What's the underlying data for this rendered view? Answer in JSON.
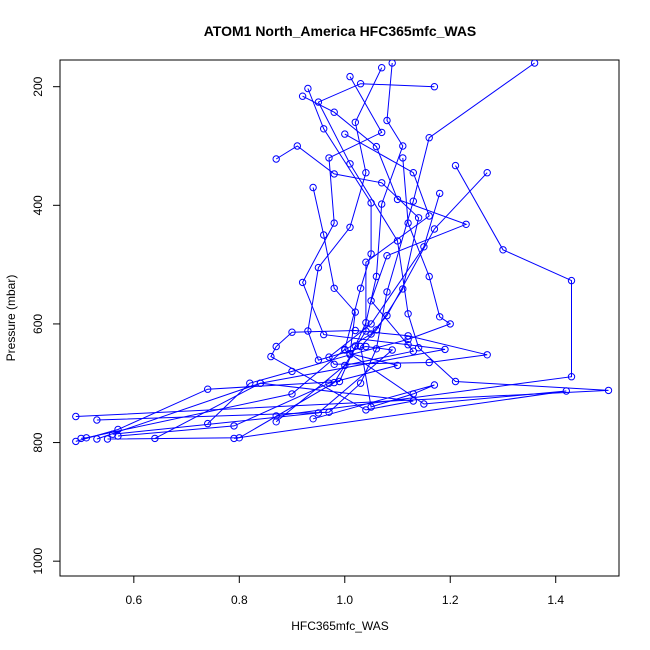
{
  "chart_data": {
    "type": "line",
    "title": "ATOM1 North_America HFC365mfc_WAS",
    "xlabel": "HFC365mfc_WAS",
    "ylabel": "Pressure (mbar)",
    "xlim": [
      0.46,
      1.52
    ],
    "ylim": [
      1025,
      155
    ],
    "y_reversed": true,
    "x_ticks": [
      0.6,
      0.8,
      1.0,
      1.2,
      1.4
    ],
    "y_ticks": [
      200,
      400,
      600,
      800,
      1000
    ],
    "grid": false,
    "legend": "none",
    "marker": "open-circle",
    "color": "#0000ff",
    "series": [
      {
        "points": [
          [
            1.09,
            160
          ],
          [
            1.08,
            257
          ],
          [
            1.11,
            300
          ],
          [
            1.07,
            398
          ],
          [
            1.06,
            520
          ],
          [
            1.04,
            598
          ],
          [
            1.02,
            637
          ],
          [
            0.99,
            697
          ],
          [
            0.74,
            710
          ],
          [
            0.57,
            778
          ],
          [
            0.49,
            798
          ]
        ]
      },
      {
        "points": [
          [
            1.17,
            200
          ],
          [
            1.03,
            195
          ],
          [
            0.95,
            226
          ],
          [
            1.01,
            330
          ],
          [
            1.1,
            460
          ],
          [
            1.12,
            583
          ],
          [
            1.14,
            640
          ],
          [
            1.21,
            697
          ],
          [
            1.5,
            712
          ],
          [
            0.49,
            756
          ]
        ]
      },
      {
        "points": [
          [
            0.93,
            203
          ],
          [
            0.96,
            271
          ],
          [
            1.05,
            396
          ],
          [
            1.05,
            482
          ],
          [
            1.03,
            540
          ],
          [
            1.0,
            643
          ],
          [
            0.9,
            718
          ],
          [
            0.51,
            792
          ],
          [
            0.5,
            793
          ]
        ]
      },
      {
        "points": [
          [
            1.36,
            160
          ],
          [
            1.16,
            286
          ],
          [
            1.13,
            393
          ],
          [
            1.08,
            546
          ],
          [
            1.06,
            642
          ],
          [
            1.03,
            700
          ],
          [
            0.97,
            749
          ],
          [
            0.53,
            762
          ]
        ]
      },
      {
        "points": [
          [
            1.07,
            168
          ],
          [
            1.02,
            260
          ],
          [
            1.04,
            345
          ],
          [
            1.01,
            437
          ],
          [
            0.95,
            505
          ],
          [
            0.93,
            612
          ],
          [
            0.95,
            661
          ],
          [
            1.04,
            638
          ],
          [
            1.09,
            644
          ],
          [
            0.95,
            750
          ],
          [
            0.56,
            786
          ]
        ]
      },
      {
        "points": [
          [
            1.01,
            183
          ],
          [
            1.07,
            277
          ],
          [
            0.97,
            320
          ],
          [
            0.98,
            430
          ],
          [
            0.92,
            530
          ],
          [
            0.96,
            618
          ],
          [
            1.12,
            635
          ],
          [
            1.19,
            643
          ],
          [
            0.84,
            700
          ],
          [
            0.53,
            794
          ]
        ]
      },
      {
        "points": [
          [
            0.92,
            216
          ],
          [
            0.98,
            243
          ],
          [
            1.06,
            301
          ],
          [
            1.1,
            390
          ],
          [
            1.23,
            432
          ],
          [
            1.08,
            485
          ],
          [
            1.05,
            561
          ],
          [
            1.13,
            646
          ],
          [
            1.0,
            670
          ],
          [
            0.87,
            765
          ]
        ]
      },
      {
        "points": [
          [
            1.0,
            280
          ],
          [
            1.13,
            345
          ],
          [
            1.16,
            418
          ],
          [
            1.04,
            496
          ],
          [
            1.04,
            612
          ],
          [
            0.98,
            699
          ],
          [
            0.8,
            792
          ],
          [
            0.55,
            794
          ]
        ]
      },
      {
        "points": [
          [
            0.87,
            322
          ],
          [
            0.91,
            300
          ],
          [
            0.98,
            347
          ],
          [
            1.07,
            362
          ],
          [
            1.14,
            421
          ],
          [
            1.11,
            541
          ],
          [
            1.06,
            610
          ],
          [
            1.03,
            638
          ],
          [
            1.05,
            740
          ],
          [
            1.13,
            718
          ],
          [
            1.17,
            703
          ],
          [
            0.94,
            760
          ]
        ]
      },
      {
        "points": [
          [
            1.21,
            333
          ],
          [
            1.3,
            475
          ],
          [
            1.43,
            527
          ],
          [
            1.43,
            689
          ],
          [
            0.87,
            755
          ]
        ]
      },
      {
        "points": [
          [
            1.27,
            345
          ],
          [
            1.17,
            440
          ],
          [
            1.08,
            586
          ],
          [
            1.05,
            617
          ],
          [
            1.0,
            644
          ],
          [
            1.15,
            735
          ],
          [
            1.42,
            713
          ],
          [
            0.79,
            793
          ]
        ]
      },
      {
        "points": [
          [
            1.18,
            380
          ],
          [
            1.15,
            470
          ],
          [
            1.05,
            600
          ],
          [
            0.97,
            656
          ],
          [
            0.98,
            668
          ],
          [
            1.16,
            665
          ],
          [
            1.27,
            652
          ],
          [
            1.12,
            620
          ],
          [
            1.02,
            611
          ],
          [
            0.9,
            614
          ],
          [
            0.87,
            638
          ],
          [
            0.86,
            655
          ],
          [
            1.04,
            745
          ],
          [
            1.13,
            730
          ],
          [
            0.84,
            700
          ],
          [
            0.64,
            793
          ]
        ]
      },
      {
        "points": [
          [
            0.94,
            370
          ],
          [
            0.96,
            450
          ],
          [
            0.98,
            540
          ],
          [
            1.02,
            580
          ],
          [
            1.01,
            650
          ],
          [
            1.1,
            670
          ],
          [
            0.97,
            700
          ],
          [
            0.79,
            772
          ],
          [
            0.57,
            789
          ]
        ]
      },
      {
        "points": [
          [
            1.11,
            320
          ],
          [
            1.12,
            430
          ],
          [
            1.16,
            520
          ],
          [
            1.18,
            588
          ],
          [
            1.2,
            600
          ],
          [
            1.12,
            626
          ],
          [
            1.01,
            652
          ],
          [
            0.9,
            680
          ],
          [
            0.82,
            700
          ],
          [
            0.74,
            768
          ]
        ]
      }
    ]
  }
}
